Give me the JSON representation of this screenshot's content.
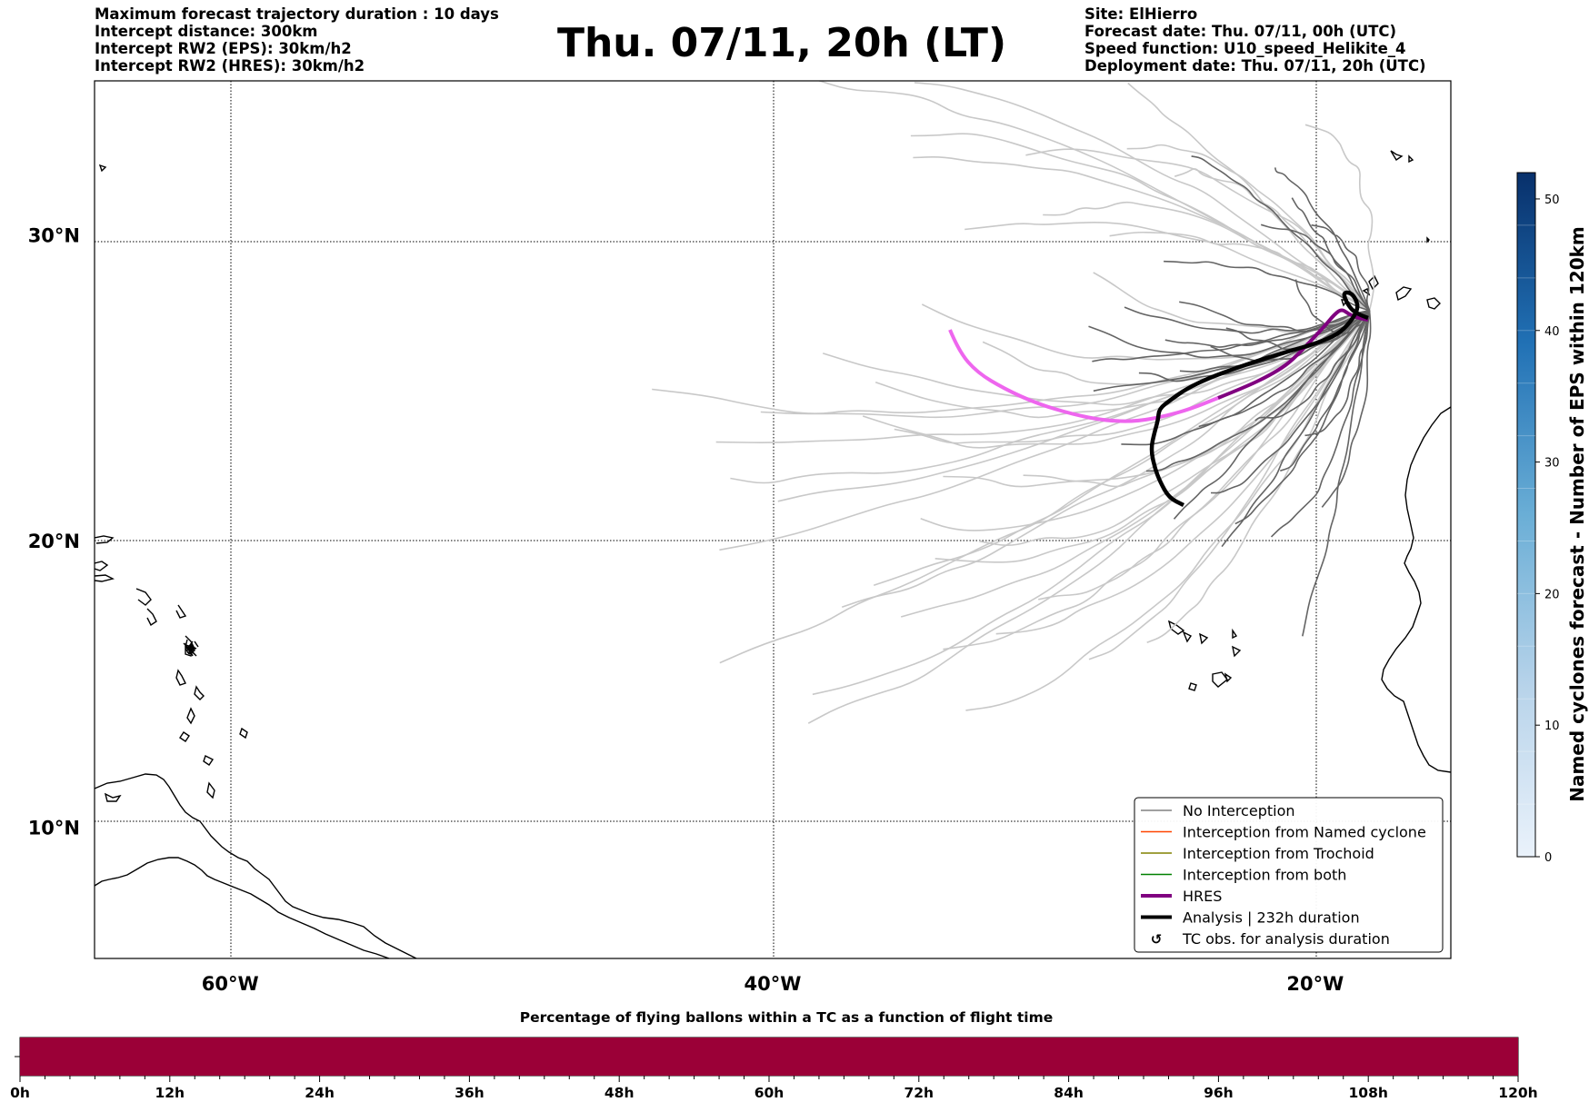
{
  "header": {
    "left_lines": [
      "Maximum forecast trajectory duration : 10 days",
      "Intercept distance: 300km",
      "Intercept RW2 (EPS):  30km/h2",
      "Intercept RW2 (HRES): 30km/h2"
    ],
    "title": "Thu. 07/11, 20h (LT)",
    "right_lines": [
      "Site: ElHierro",
      "Forecast date: Thu. 07/11, 00h (UTC)",
      "Speed function: U10_speed_Helikite_4",
      "Deployment date: Thu. 07/11, 20h (UTC)"
    ]
  },
  "map": {
    "lon_ticks": [
      "60°W",
      "40°W",
      "20°W"
    ],
    "lat_ticks": [
      "30°N",
      "20°N",
      "10°N"
    ],
    "lon_values": [
      -60,
      -40,
      -20
    ],
    "lat_values": [
      30,
      20,
      10
    ],
    "extent": {
      "lon": [
        -65,
        -15
      ],
      "lat": [
        5.3,
        34.7
      ]
    },
    "launch_site": {
      "lon": -18.0,
      "lat": 27.6
    },
    "colors": {
      "eps_light": "#c8c8c8",
      "eps_dark": "#646464",
      "hres_light": "#ee66ee",
      "hres_dark": "#800080",
      "analysis": "#000000"
    }
  },
  "legend": {
    "items": [
      {
        "label": "No Interception",
        "color": "#808080",
        "style": "thin"
      },
      {
        "label": "Interception from Named cyclone",
        "color": "#ff4500",
        "style": "thin"
      },
      {
        "label": "Interception from Trochoid",
        "color": "#808000",
        "style": "thin"
      },
      {
        "label": "Interception from both",
        "color": "#008000",
        "style": "thin"
      },
      {
        "label": "HRES",
        "color": "#800080",
        "style": "thick"
      },
      {
        "label": "Analysis | 232h duration",
        "color": "#000000",
        "style": "thick"
      },
      {
        "label": "TC obs. for analysis duration",
        "color": "#000000",
        "style": "marker"
      }
    ]
  },
  "colorbar": {
    "label": "Named cyclones forecast - Number of EPS within 120km",
    "ticks": [
      "0",
      "10",
      "20",
      "30",
      "40",
      "50"
    ],
    "tick_values": [
      0,
      10,
      20,
      30,
      40,
      50
    ],
    "max": 52,
    "colors": [
      "#eaf2fb",
      "#08306b"
    ]
  },
  "timebar": {
    "title": "Percentage of flying ballons within a TC as a function of flight time",
    "ticks": [
      "0h",
      "12h",
      "24h",
      "36h",
      "48h",
      "60h",
      "72h",
      "84h",
      "96h",
      "108h",
      "120h"
    ],
    "fill_color": "#9b0037",
    "fraction_filled": 1.0
  }
}
